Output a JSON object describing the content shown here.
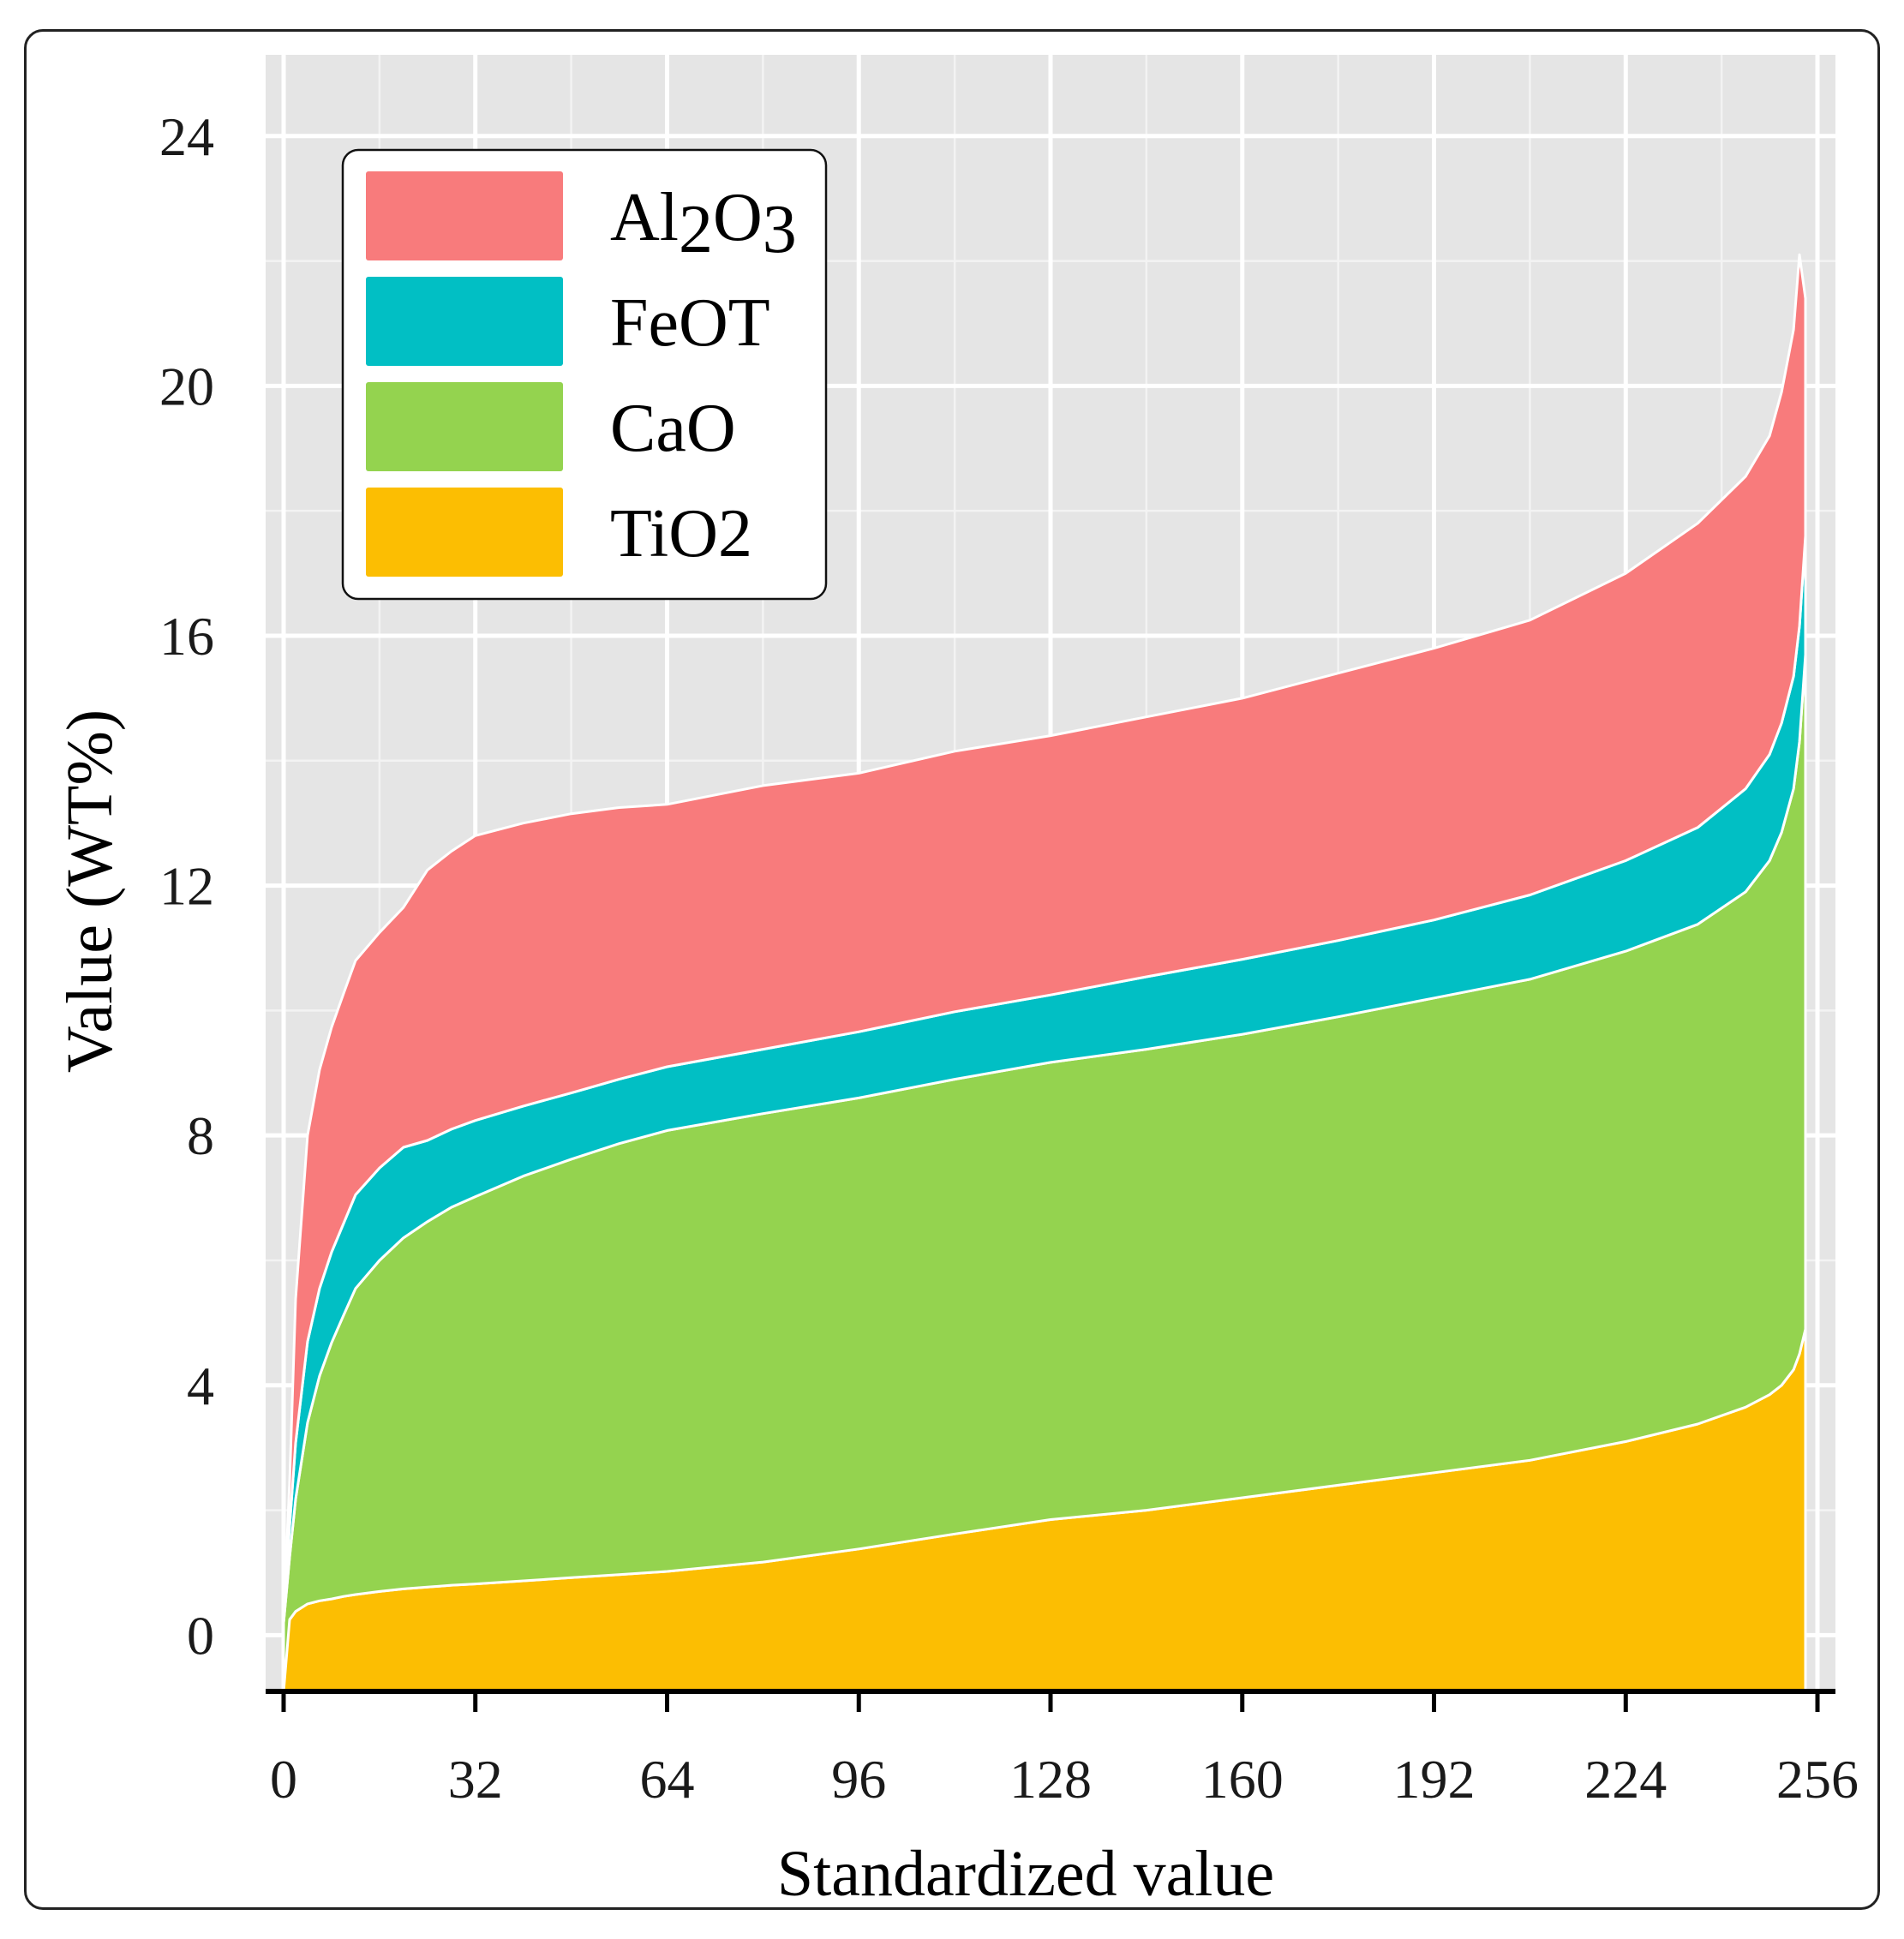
{
  "chart_data": {
    "type": "area",
    "stacked": true,
    "xlabel": "Standardized value",
    "ylabel": "Value (WT%)",
    "xlim": [
      -3,
      259
    ],
    "ylim": [
      -0.9,
      25.3
    ],
    "x_ticks": [
      0,
      32,
      64,
      96,
      128,
      160,
      192,
      224,
      256
    ],
    "y_ticks": [
      0,
      4,
      8,
      12,
      16,
      20,
      24
    ],
    "grid": true,
    "legend_position": "top-left",
    "x": [
      0,
      1,
      2,
      4,
      6,
      8,
      10,
      12,
      16,
      20,
      24,
      28,
      32,
      40,
      48,
      56,
      64,
      80,
      96,
      112,
      128,
      144,
      160,
      176,
      192,
      208,
      224,
      236,
      244,
      248,
      250,
      252,
      253,
      254
    ],
    "series": [
      {
        "name": "TiO2",
        "color": "#FCBE02",
        "values": [
          0.0,
          0.25,
          0.38,
          0.5,
          0.55,
          0.58,
          0.62,
          0.65,
          0.7,
          0.74,
          0.77,
          0.8,
          0.82,
          0.87,
          0.92,
          0.97,
          1.02,
          1.17,
          1.38,
          1.62,
          1.85,
          2.0,
          2.2,
          2.4,
          2.6,
          2.8,
          3.1,
          3.38,
          3.65,
          3.85,
          4.0,
          4.25,
          4.5,
          4.9
        ]
      },
      {
        "name": "CaO",
        "color": "#94D34F",
        "values": [
          0.2,
          1.0,
          1.8,
          2.9,
          3.6,
          4.1,
          4.5,
          4.9,
          5.3,
          5.62,
          5.85,
          6.05,
          6.2,
          6.48,
          6.7,
          6.9,
          7.06,
          7.18,
          7.22,
          7.28,
          7.32,
          7.38,
          7.42,
          7.5,
          7.6,
          7.7,
          7.85,
          8.0,
          8.25,
          8.55,
          8.85,
          9.3,
          9.8,
          10.8
        ]
      },
      {
        "name": "FeOT",
        "color": "#01BFC4",
        "values": [
          0.1,
          0.5,
          0.9,
          1.3,
          1.4,
          1.45,
          1.47,
          1.5,
          1.48,
          1.45,
          1.3,
          1.25,
          1.22,
          1.12,
          1.06,
          1.03,
          1.02,
          1.03,
          1.06,
          1.08,
          1.08,
          1.16,
          1.2,
          1.22,
          1.25,
          1.35,
          1.45,
          1.55,
          1.65,
          1.7,
          1.75,
          1.8,
          1.85,
          1.9
        ]
      },
      {
        "name": "Al2O3",
        "color": "#F87B7C",
        "values": [
          0.0,
          0.7,
          2.3,
          3.3,
          3.5,
          3.6,
          3.68,
          3.75,
          3.77,
          3.84,
          4.33,
          4.45,
          4.56,
          4.53,
          4.47,
          4.35,
          4.2,
          4.22,
          4.14,
          4.17,
          4.15,
          4.16,
          4.18,
          4.28,
          4.35,
          4.4,
          4.6,
          4.87,
          5.0,
          5.1,
          5.3,
          5.55,
          5.95,
          3.8
        ]
      }
    ],
    "legend_order": [
      "Al2O3",
      "FeOT",
      "CaO",
      "TiO2"
    ]
  }
}
